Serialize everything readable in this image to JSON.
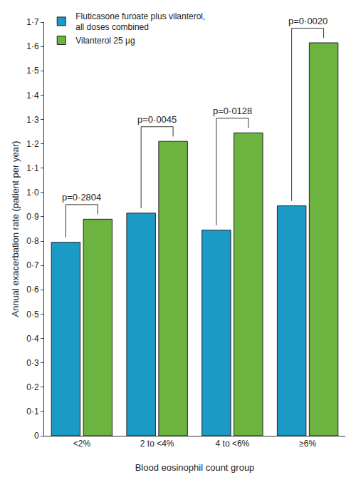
{
  "chart_data": {
    "type": "bar",
    "categories": [
      "<2%",
      "2 to <4%",
      "4 to <6%",
      "≥6%"
    ],
    "series": [
      {
        "name": "Fluticasone furoate plus vilanterol, all doses combined",
        "color": "#1b9ac6",
        "values": [
          0.795,
          0.915,
          0.845,
          0.945
        ]
      },
      {
        "name": "Vilanterol 25 µg",
        "color": "#6cb33f",
        "values": [
          0.89,
          1.21,
          1.245,
          1.615
        ]
      }
    ],
    "x_label": "Blood eosinophil count group",
    "y_label": "Annual exacerbation rate (patient per year)",
    "ylim": [
      0,
      1.7
    ],
    "yticks": [
      0,
      {
        "value": 0.1,
        "label": "0·1"
      },
      {
        "value": 0.2,
        "label": "0·2"
      },
      {
        "value": 0.3,
        "label": "0·3"
      },
      {
        "value": 0.4,
        "label": "0·4"
      },
      {
        "value": 0.5,
        "label": "0·5"
      },
      {
        "value": 0.6,
        "label": "0·6"
      },
      {
        "value": 0.7,
        "label": "0·7"
      },
      {
        "value": 0.8,
        "label": "0·8"
      },
      {
        "value": 0.9,
        "label": "0·9"
      },
      {
        "value": 1.0,
        "label": "1·0"
      },
      {
        "value": 1.1,
        "label": "1·1"
      },
      {
        "value": 1.2,
        "label": "1·2"
      },
      {
        "value": 1.3,
        "label": "1·3"
      },
      {
        "value": 1.4,
        "label": "1·4"
      },
      {
        "value": 1.5,
        "label": "1·5"
      },
      {
        "value": 1.6,
        "label": "1·6"
      },
      {
        "value": 1.7,
        "label": "1·7"
      }
    ],
    "annotations": [
      {
        "category": "<2%",
        "text": "p=0·2804"
      },
      {
        "category": "2 to <4%",
        "text": "p=0·0045"
      },
      {
        "category": "4 to <6%",
        "text": "p=0·0128"
      },
      {
        "category": "≥6%",
        "text": "p=0·0020"
      }
    ],
    "legend": "top left",
    "grid": false
  }
}
